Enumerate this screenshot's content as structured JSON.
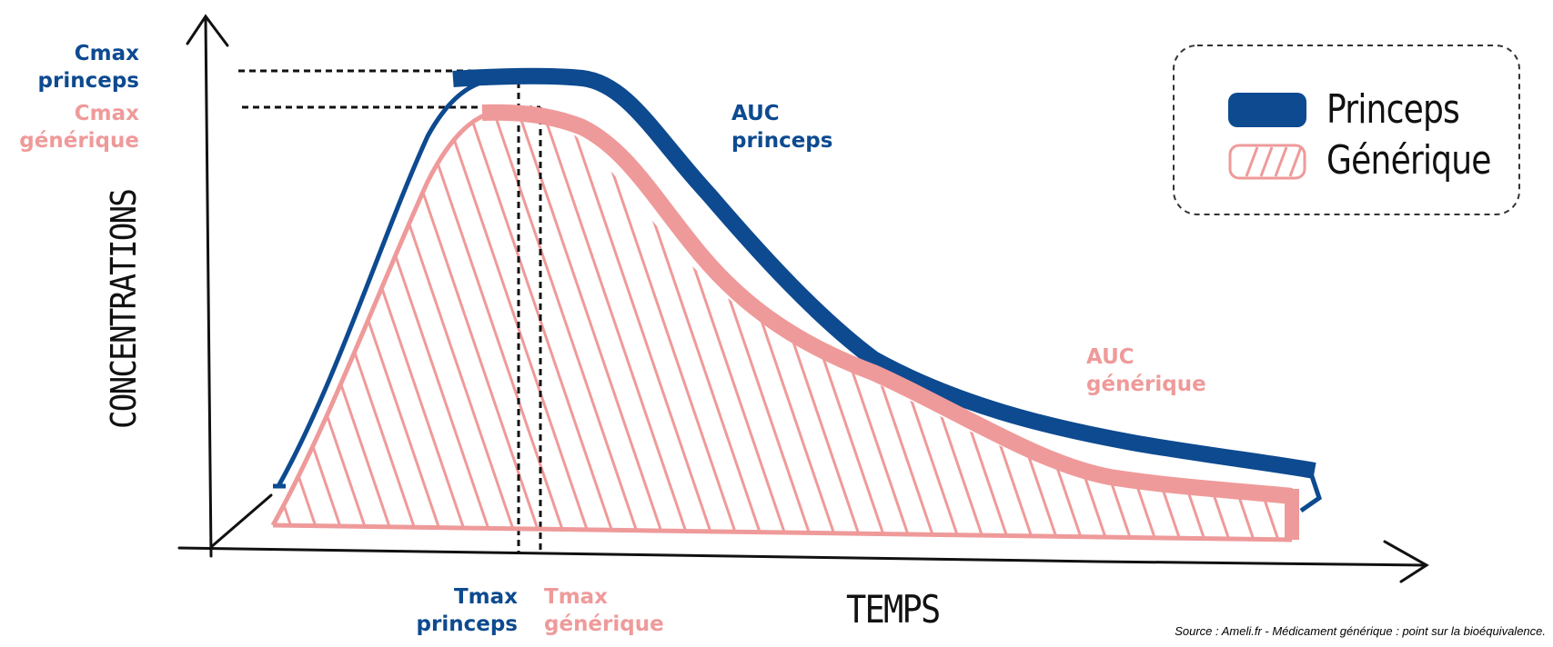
{
  "diagram": {
    "y_axis_label": "CONCENTRATIONS",
    "x_axis_label": "TEMPS",
    "cmax_princeps": "Cmax\nprinceps",
    "cmax_generique": "Cmax\ngénérique",
    "tmax_princeps": "Tmax\nprinceps",
    "tmax_generique": "Tmax\ngénérique",
    "auc_princeps": "AUC\nprinceps",
    "auc_generique": "AUC\ngénérique"
  },
  "legend": {
    "items": [
      {
        "label": "Princeps",
        "color": "#0d4a90",
        "swatch": "solid"
      },
      {
        "label": "Générique",
        "color": "#ef9a9a",
        "swatch": "hatched"
      }
    ]
  },
  "colors": {
    "princeps": "#0d4a90",
    "generique": "#ef9a9a",
    "ink": "#111111"
  },
  "source": "Source : Ameli.fr - Médicament générique : point sur la bioéquivalence."
}
